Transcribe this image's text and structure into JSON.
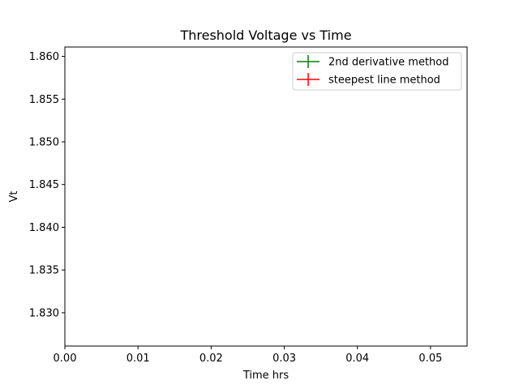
{
  "chart_data": {
    "type": "line",
    "title": "Threshold Voltage vs Time",
    "xlabel": "Time hrs",
    "ylabel": "Vt",
    "xlim": [
      0.0,
      0.055
    ],
    "ylim": [
      1.8261,
      1.8611
    ],
    "x_ticks": [
      0.0,
      0.01,
      0.02,
      0.03,
      0.04,
      0.05
    ],
    "x_tick_labels": [
      "0.00",
      "0.01",
      "0.02",
      "0.03",
      "0.04",
      "0.05"
    ],
    "y_ticks": [
      1.83,
      1.835,
      1.84,
      1.845,
      1.85,
      1.855,
      1.86
    ],
    "y_tick_labels": [
      "1.830",
      "1.835",
      "1.840",
      "1.845",
      "1.850",
      "1.855",
      "1.860"
    ],
    "grid": false,
    "legend_position": "top-right",
    "series": [
      {
        "name": "2nd derivative method",
        "color": "#008000",
        "marker": "errorbar-cross",
        "x": [],
        "y": []
      },
      {
        "name": "steepest line method",
        "color": "#ff0000",
        "marker": "errorbar-cross",
        "x": [],
        "y": []
      }
    ]
  }
}
